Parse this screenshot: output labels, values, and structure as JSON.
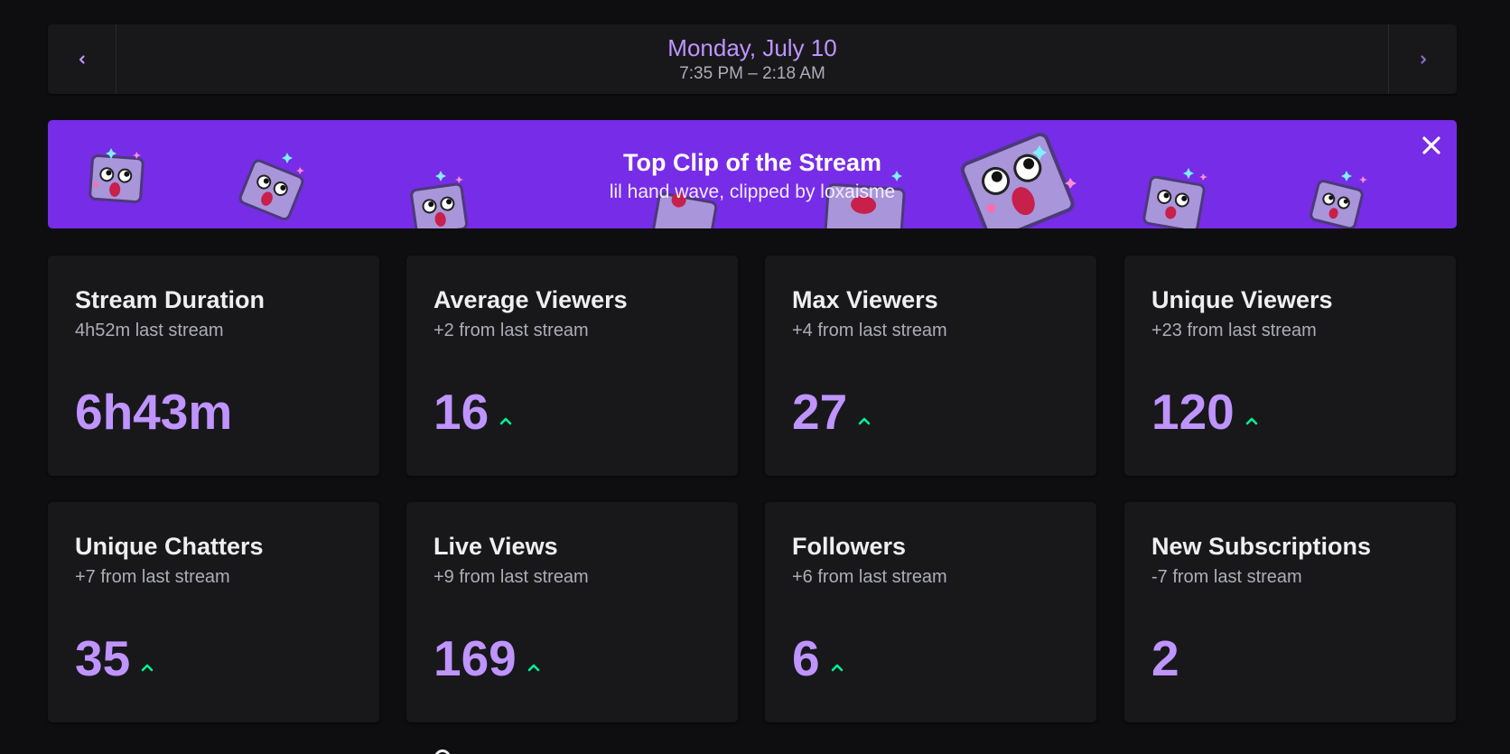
{
  "date_nav": {
    "prev_icon": "chevron-left-icon",
    "next_icon": "chevron-right-icon",
    "date": "Monday, July 10",
    "time_range": "7:35 PM – 2:18 AM"
  },
  "clip_banner": {
    "title": "Top Clip of the Stream",
    "subtitle": "lil hand wave, clipped by loxaisme",
    "close_icon": "close-icon",
    "background": "#772ce8"
  },
  "stats": [
    {
      "title": "Stream Duration",
      "comparison": "4h52m last stream",
      "value": "6h43m",
      "trend": "none"
    },
    {
      "title": "Average Viewers",
      "comparison": "+2 from last stream",
      "value": "16",
      "trend": "up"
    },
    {
      "title": "Max Viewers",
      "comparison": "+4 from last stream",
      "value": "27",
      "trend": "up"
    },
    {
      "title": "Unique Viewers",
      "comparison": "+23 from last stream",
      "value": "120",
      "trend": "up"
    },
    {
      "title": "Unique Chatters",
      "comparison": "+7 from last stream",
      "value": "35",
      "trend": "up"
    },
    {
      "title": "Live Views",
      "comparison": "+9 from last stream",
      "value": "169",
      "trend": "up"
    },
    {
      "title": "Followers",
      "comparison": "+6 from last stream",
      "value": "6",
      "trend": "up"
    },
    {
      "title": "New Subscriptions",
      "comparison": "-7 from last stream",
      "value": "2",
      "trend": "none"
    }
  ],
  "colors": {
    "accent": "#bf94ff",
    "trend_up": "#00f593",
    "card_bg": "#18181b",
    "page_bg": "#0e0e10"
  }
}
